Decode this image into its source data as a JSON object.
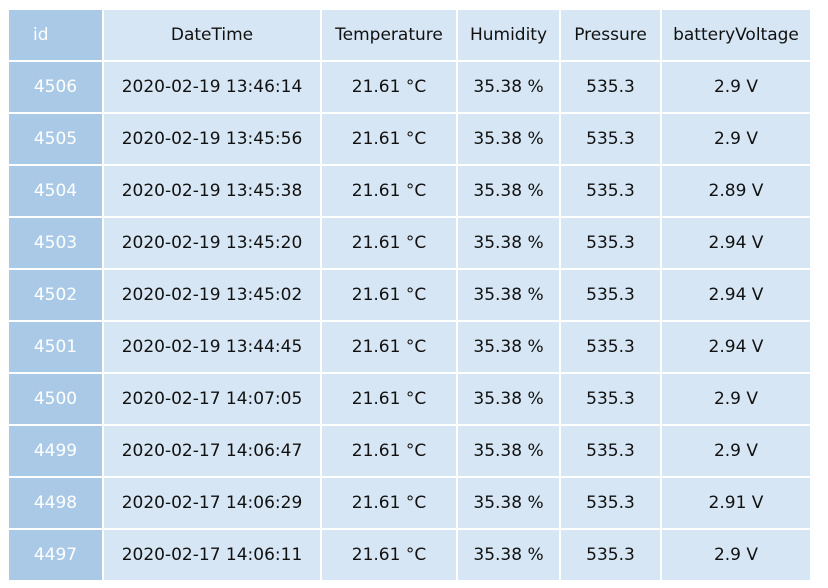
{
  "table": {
    "headers": [
      "id",
      "DateTime",
      "Temperature",
      "Humidity",
      "Pressure",
      "batteryVoltage"
    ],
    "rows": [
      [
        "4506",
        "2020-02-19 13:46:14",
        "21.61 °C",
        "35.38 %",
        "535.3",
        "2.9 V"
      ],
      [
        "4505",
        "2020-02-19 13:45:56",
        "21.61 °C",
        "35.38 %",
        "535.3",
        "2.9 V"
      ],
      [
        "4504",
        "2020-02-19 13:45:38",
        "21.61 °C",
        "35.38 %",
        "535.3",
        "2.89 V"
      ],
      [
        "4503",
        "2020-02-19 13:45:20",
        "21.61 °C",
        "35.38 %",
        "535.3",
        "2.94 V"
      ],
      [
        "4502",
        "2020-02-19 13:45:02",
        "21.61 °C",
        "35.38 %",
        "535.3",
        "2.94 V"
      ],
      [
        "4501",
        "2020-02-19 13:44:45",
        "21.61 °C",
        "35.38 %",
        "535.3",
        "2.94 V"
      ],
      [
        "4500",
        "2020-02-17 14:07:05",
        "21.61 °C",
        "35.38 %",
        "535.3",
        "2.9 V"
      ],
      [
        "4499",
        "2020-02-17 14:06:47",
        "21.61 °C",
        "35.38 %",
        "535.3",
        "2.9 V"
      ],
      [
        "4498",
        "2020-02-17 14:06:29",
        "21.61 °C",
        "35.38 %",
        "535.3",
        "2.91 V"
      ],
      [
        "4497",
        "2020-02-17 14:06:11",
        "21.61 °C",
        "35.38 %",
        "535.3",
        "2.9 V"
      ]
    ]
  },
  "colors": {
    "cell_background": "#d6e6f4",
    "id_column_background": "#a9c9e6",
    "id_column_text": "#ffffff"
  }
}
